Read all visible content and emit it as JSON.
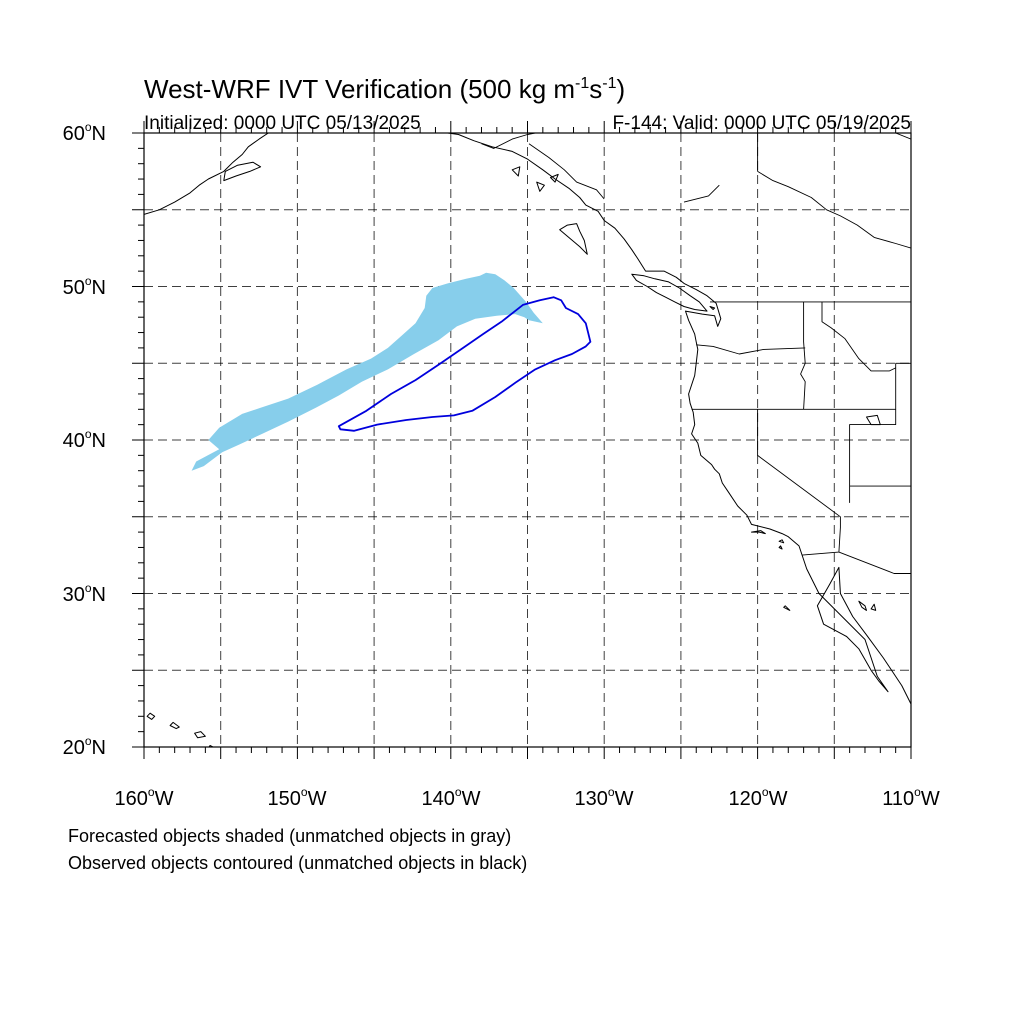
{
  "title": {
    "main": "West-WRF IVT Verification (500 kg m",
    "exp1": "-1",
    "mid": "s",
    "exp2": "-1",
    "end": ")"
  },
  "subtitle_left": "Initialized: 0000 UTC 05/13/2025",
  "subtitle_right": "F-144: Valid: 0000 UTC 05/19/2025",
  "map": {
    "lon_range": [
      -160,
      -110
    ],
    "lat_range": [
      20,
      60
    ],
    "lon_labels": [
      {
        "deg": "160",
        "hem": "W"
      },
      {
        "deg": "150",
        "hem": "W"
      },
      {
        "deg": "140",
        "hem": "W"
      },
      {
        "deg": "130",
        "hem": "W"
      },
      {
        "deg": "120",
        "hem": "W"
      },
      {
        "deg": "110",
        "hem": "W"
      }
    ],
    "lat_labels": [
      {
        "deg": "60",
        "hem": "N"
      },
      {
        "deg": "50",
        "hem": "N"
      },
      {
        "deg": "40",
        "hem": "N"
      },
      {
        "deg": "30",
        "hem": "N"
      },
      {
        "deg": "20",
        "hem": "N"
      }
    ],
    "colors": {
      "forecast_fill": "#87ceeb",
      "observed_contour": "#0000dd",
      "coastline": "#000000",
      "grid": "#000000"
    },
    "forecast_object": [
      [
        -156.9,
        38.0
      ],
      [
        -156.1,
        38.3
      ],
      [
        -154.9,
        39.2
      ],
      [
        -153.8,
        39.7
      ],
      [
        -152.3,
        40.4
      ],
      [
        -150.6,
        41.2
      ],
      [
        -148.8,
        42.1
      ],
      [
        -147.3,
        42.9
      ],
      [
        -145.8,
        43.8
      ],
      [
        -144.1,
        44.6
      ],
      [
        -142.4,
        45.6
      ],
      [
        -140.8,
        46.5
      ],
      [
        -139.6,
        47.4
      ],
      [
        -138.4,
        47.9
      ],
      [
        -137.0,
        48.1
      ],
      [
        -135.8,
        48.2
      ],
      [
        -135.2,
        48.0
      ],
      [
        -134.9,
        47.8
      ],
      [
        -134.0,
        47.6
      ],
      [
        -133.6,
        47.3
      ],
      [
        -134.0,
        47.6
      ],
      [
        -134.6,
        48.3
      ],
      [
        -135.1,
        49.0
      ],
      [
        -135.9,
        49.9
      ],
      [
        -136.5,
        50.4
      ],
      [
        -137.1,
        50.8
      ],
      [
        -137.7,
        50.9
      ],
      [
        -138.1,
        50.7
      ],
      [
        -139.0,
        50.5
      ],
      [
        -140.2,
        50.2
      ],
      [
        -141.2,
        49.9
      ],
      [
        -141.6,
        49.4
      ],
      [
        -141.7,
        48.6
      ],
      [
        -142.3,
        47.6
      ],
      [
        -143.2,
        46.8
      ],
      [
        -144.1,
        46.0
      ],
      [
        -145.2,
        45.3
      ],
      [
        -146.8,
        44.6
      ],
      [
        -148.7,
        43.6
      ],
      [
        -150.6,
        42.7
      ],
      [
        -152.4,
        42.1
      ],
      [
        -153.6,
        41.7
      ],
      [
        -155.1,
        40.8
      ],
      [
        -155.8,
        40.0
      ],
      [
        -155.1,
        39.4
      ],
      [
        -156.6,
        38.6
      ]
    ],
    "observed_object": [
      [
        -147.2,
        40.7
      ],
      [
        -146.3,
        40.6
      ],
      [
        -144.8,
        41.0
      ],
      [
        -142.9,
        41.3
      ],
      [
        -141.2,
        41.5
      ],
      [
        -139.8,
        41.6
      ],
      [
        -138.6,
        41.9
      ],
      [
        -137.1,
        42.8
      ],
      [
        -135.7,
        43.8
      ],
      [
        -134.5,
        44.6
      ],
      [
        -133.2,
        45.2
      ],
      [
        -132.1,
        45.6
      ],
      [
        -131.2,
        46.1
      ],
      [
        -130.9,
        46.4
      ],
      [
        -131.2,
        47.6
      ],
      [
        -131.7,
        48.2
      ],
      [
        -132.5,
        48.6
      ],
      [
        -132.8,
        49.1
      ],
      [
        -133.3,
        49.3
      ],
      [
        -134.2,
        49.1
      ],
      [
        -135.3,
        48.8
      ],
      [
        -136.7,
        47.7
      ],
      [
        -137.9,
        46.9
      ],
      [
        -139.2,
        46.0
      ],
      [
        -140.8,
        44.9
      ],
      [
        -142.3,
        43.9
      ],
      [
        -143.9,
        43.0
      ],
      [
        -145.5,
        41.9
      ],
      [
        -147.3,
        40.9
      ]
    ],
    "coastline_na": [
      [
        -110.0,
        22.8
      ],
      [
        -110.6,
        24.0
      ],
      [
        -111.8,
        25.8
      ],
      [
        -112.9,
        27.3
      ],
      [
        -113.8,
        28.5
      ],
      [
        -114.6,
        30.0
      ],
      [
        -114.7,
        31.7
      ],
      [
        -115.3,
        30.6
      ],
      [
        -116.1,
        29.2
      ],
      [
        -115.7,
        28.0
      ],
      [
        -114.2,
        27.2
      ],
      [
        -113.4,
        26.4
      ],
      [
        -112.6,
        25.0
      ],
      [
        -112.1,
        24.3
      ],
      [
        -111.5,
        23.6
      ],
      [
        -112.2,
        24.6
      ],
      [
        -113.0,
        27.0
      ],
      [
        -114.5,
        28.5
      ],
      [
        -116.0,
        30.0
      ],
      [
        -116.8,
        31.6
      ],
      [
        -117.1,
        32.5
      ],
      [
        -117.3,
        33.1
      ],
      [
        -118.0,
        33.7
      ],
      [
        -118.4,
        33.9
      ],
      [
        -119.2,
        34.2
      ],
      [
        -120.4,
        34.5
      ],
      [
        -120.7,
        35.1
      ],
      [
        -121.3,
        35.7
      ],
      [
        -121.9,
        36.6
      ],
      [
        -122.3,
        37.2
      ],
      [
        -122.5,
        37.8
      ],
      [
        -122.8,
        38.1
      ],
      [
        -123.0,
        38.4
      ],
      [
        -123.7,
        39.0
      ],
      [
        -123.9,
        39.8
      ],
      [
        -124.3,
        40.4
      ],
      [
        -124.1,
        41.0
      ],
      [
        -124.2,
        41.8
      ],
      [
        -124.4,
        42.4
      ],
      [
        -124.5,
        43.0
      ],
      [
        -124.1,
        44.2
      ],
      [
        -124.0,
        45.0
      ],
      [
        -123.9,
        45.9
      ],
      [
        -124.0,
        46.4
      ],
      [
        -124.1,
        46.9
      ],
      [
        -124.5,
        47.8
      ],
      [
        -124.7,
        48.4
      ],
      [
        -123.6,
        48.2
      ],
      [
        -122.8,
        48.1
      ],
      [
        -122.6,
        47.4
      ],
      [
        -122.4,
        47.9
      ],
      [
        -122.7,
        48.9
      ],
      [
        -123.3,
        49.4
      ],
      [
        -124.0,
        49.8
      ],
      [
        -124.8,
        50.2
      ],
      [
        -125.3,
        50.6
      ],
      [
        -126.1,
        51.0
      ],
      [
        -127.3,
        51.0
      ],
      [
        -127.8,
        51.8
      ],
      [
        -128.2,
        52.4
      ],
      [
        -128.7,
        53.1
      ],
      [
        -129.3,
        53.8
      ],
      [
        -130.0,
        54.3
      ],
      [
        -130.4,
        54.9
      ],
      [
        -131.2,
        55.3
      ],
      [
        -131.6,
        55.8
      ],
      [
        -132.3,
        56.4
      ],
      [
        -133.2,
        57.0
      ],
      [
        -134.0,
        57.6
      ],
      [
        -135.0,
        58.3
      ],
      [
        -136.0,
        58.8
      ],
      [
        -137.3,
        59.1
      ],
      [
        -138.5,
        59.5
      ],
      [
        -139.5,
        59.9
      ],
      [
        -140.2,
        60.0
      ]
    ],
    "vancouver_island": [
      [
        -123.3,
        48.4
      ],
      [
        -124.1,
        48.5
      ],
      [
        -124.8,
        48.7
      ],
      [
        -125.4,
        49.0
      ],
      [
        -126.0,
        49.3
      ],
      [
        -126.6,
        49.6
      ],
      [
        -127.2,
        50.0
      ],
      [
        -127.9,
        50.4
      ],
      [
        -128.2,
        50.8
      ],
      [
        -127.4,
        50.7
      ],
      [
        -126.7,
        50.5
      ],
      [
        -125.8,
        50.3
      ],
      [
        -125.1,
        49.9
      ],
      [
        -124.4,
        49.4
      ],
      [
        -123.8,
        49.0
      ],
      [
        -123.3,
        48.4
      ]
    ],
    "haida_gwaii": [
      [
        -131.1,
        52.1
      ],
      [
        -131.6,
        52.6
      ],
      [
        -132.2,
        53.1
      ],
      [
        -132.9,
        53.7
      ],
      [
        -132.4,
        54.0
      ],
      [
        -131.8,
        54.1
      ],
      [
        -131.6,
        53.6
      ],
      [
        -131.3,
        53.0
      ],
      [
        -131.1,
        52.1
      ]
    ],
    "alaska": [
      [
        -160.0,
        54.7
      ],
      [
        -159.0,
        55.0
      ],
      [
        -158.0,
        55.5
      ],
      [
        -157.0,
        56.1
      ],
      [
        -156.4,
        56.6
      ],
      [
        -155.8,
        57.0
      ],
      [
        -154.8,
        57.5
      ],
      [
        -154.2,
        58.1
      ],
      [
        -153.6,
        58.6
      ],
      [
        -153.2,
        59.1
      ],
      [
        -152.5,
        59.6
      ],
      [
        -151.9,
        60.0
      ]
    ],
    "kodiak": [
      [
        -154.8,
        56.9
      ],
      [
        -154.0,
        57.2
      ],
      [
        -153.1,
        57.5
      ],
      [
        -152.4,
        57.8
      ],
      [
        -152.9,
        58.1
      ],
      [
        -153.9,
        57.9
      ],
      [
        -154.7,
        57.5
      ],
      [
        -154.8,
        56.9
      ]
    ],
    "hawaii": [
      [
        [
          -154.8,
          19.3
        ],
        [
          -154.9,
          19.7
        ],
        [
          -155.7,
          20.1
        ],
        [
          -156.0,
          19.6
        ],
        [
          -155.8,
          19.0
        ],
        [
          -155.2,
          19.1
        ],
        [
          -154.8,
          19.3
        ]
      ],
      [
        [
          -156.0,
          20.7
        ],
        [
          -156.3,
          21.0
        ],
        [
          -156.7,
          20.9
        ],
        [
          -156.5,
          20.6
        ],
        [
          -156.0,
          20.7
        ]
      ],
      [
        [
          -157.7,
          21.3
        ],
        [
          -158.1,
          21.6
        ],
        [
          -158.3,
          21.4
        ],
        [
          -157.9,
          21.2
        ],
        [
          -157.7,
          21.3
        ]
      ],
      [
        [
          -159.3,
          22.0
        ],
        [
          -159.6,
          22.2
        ],
        [
          -159.8,
          22.0
        ],
        [
          -159.5,
          21.8
        ],
        [
          -159.3,
          22.0
        ]
      ]
    ],
    "borders": [
      [
        [
          -123.1,
          49.0
        ],
        [
          -110.0,
          49.0
        ]
      ],
      [
        [
          -124.3,
          42.0
        ],
        [
          -111.0,
          42.0
        ]
      ],
      [
        [
          -120.0,
          42.0
        ],
        [
          -120.0,
          39.0
        ],
        [
          -114.6,
          35.0
        ],
        [
          -114.6,
          34.3
        ],
        [
          -114.7,
          32.7
        ],
        [
          -117.1,
          32.5
        ]
      ],
      [
        [
          -114.7,
          32.7
        ],
        [
          -111.1,
          31.3
        ],
        [
          -110.0,
          31.3
        ]
      ],
      [
        [
          -117.0,
          49.0
        ],
        [
          -117.0,
          46.4
        ],
        [
          -116.9,
          45.0
        ],
        [
          -117.2,
          44.3
        ],
        [
          -116.9,
          43.8
        ],
        [
          -117.0,
          42.0
        ]
      ],
      [
        [
          -124.0,
          46.2
        ],
        [
          -122.9,
          46.1
        ],
        [
          -121.2,
          45.6
        ],
        [
          -119.6,
          45.9
        ],
        [
          -116.9,
          46.0
        ]
      ],
      [
        [
          -111.0,
          45.0
        ],
        [
          -111.0,
          41.0
        ],
        [
          -114.0,
          41.0
        ],
        [
          -114.0,
          37.0
        ],
        [
          -114.0,
          35.9
        ]
      ],
      [
        [
          -111.0,
          45.0
        ],
        [
          -110.0,
          45.0
        ]
      ],
      [
        [
          -114.0,
          37.0
        ],
        [
          -110.0,
          37.0
        ]
      ],
      [
        [
          -115.8,
          49.0
        ],
        [
          -115.8,
          47.7
        ],
        [
          -115.2,
          47.3
        ],
        [
          -114.3,
          46.6
        ],
        [
          -113.4,
          45.3
        ],
        [
          -112.6,
          44.5
        ],
        [
          -111.4,
          44.5
        ],
        [
          -111.0,
          44.7
        ]
      ],
      [
        [
          -120.0,
          57.5
        ],
        [
          -120.0,
          60.0
        ]
      ],
      [
        [
          -120.0,
          57.5
        ],
        [
          -119.0,
          56.9
        ],
        [
          -118.0,
          56.5
        ],
        [
          -116.5,
          55.8
        ],
        [
          -115.5,
          55.0
        ],
        [
          -114.6,
          54.6
        ],
        [
          -113.5,
          54.0
        ],
        [
          -112.4,
          53.2
        ],
        [
          -111.0,
          52.8
        ],
        [
          -110.0,
          52.5
        ]
      ],
      [
        [
          -124.8,
          55.5
        ],
        [
          -123.2,
          55.9
        ],
        [
          -122.5,
          56.6
        ]
      ],
      [
        [
          -138.0,
          59.3
        ],
        [
          -137.2,
          59.0
        ],
        [
          -136.0,
          59.6
        ],
        [
          -135.0,
          59.9
        ],
        [
          -134.5,
          60.0
        ]
      ],
      [
        [
          -130.0,
          55.7
        ],
        [
          -130.5,
          56.3
        ],
        [
          -131.8,
          56.8
        ],
        [
          -132.6,
          57.6
        ],
        [
          -133.6,
          58.4
        ],
        [
          -134.9,
          59.3
        ]
      ],
      [
        [
          -111.0,
          60.0
        ],
        [
          -110.0,
          59.6
        ]
      ]
    ],
    "islands_small": [
      [
        [
          -119.5,
          33.9
        ],
        [
          -119.9,
          34.0
        ],
        [
          -120.4,
          34.0
        ],
        [
          -119.8,
          34.1
        ],
        [
          -119.5,
          33.9
        ]
      ],
      [
        [
          -118.3,
          33.3
        ],
        [
          -118.6,
          33.4
        ],
        [
          -118.4,
          33.5
        ],
        [
          -118.3,
          33.3
        ]
      ],
      [
        [
          -118.4,
          32.9
        ],
        [
          -118.6,
          33.0
        ],
        [
          -118.5,
          33.1
        ],
        [
          -118.4,
          32.9
        ]
      ],
      [
        [
          -117.9,
          28.9
        ],
        [
          -118.3,
          29.1
        ],
        [
          -118.2,
          29.2
        ],
        [
          -117.9,
          28.9
        ]
      ],
      [
        [
          -112.9,
          28.9
        ],
        [
          -113.2,
          29.1
        ],
        [
          -113.4,
          29.5
        ],
        [
          -113.0,
          29.2
        ],
        [
          -112.9,
          28.9
        ]
      ],
      [
        [
          -112.3,
          28.9
        ],
        [
          -112.4,
          29.3
        ],
        [
          -112.6,
          29.0
        ],
        [
          -112.3,
          28.9
        ]
      ],
      [
        [
          -112.6,
          41.0
        ],
        [
          -112.9,
          41.5
        ],
        [
          -112.2,
          41.6
        ],
        [
          -112.0,
          41.0
        ],
        [
          -112.6,
          41.0
        ]
      ],
      [
        [
          -122.9,
          48.5
        ],
        [
          -123.1,
          48.7
        ],
        [
          -122.8,
          48.6
        ],
        [
          -122.9,
          48.5
        ]
      ],
      [
        [
          -133.2,
          56.8
        ],
        [
          -133.5,
          57.1
        ],
        [
          -133.0,
          57.3
        ],
        [
          -133.2,
          56.8
        ]
      ],
      [
        [
          -134.2,
          56.2
        ],
        [
          -134.4,
          56.8
        ],
        [
          -133.9,
          56.6
        ],
        [
          -134.2,
          56.2
        ]
      ],
      [
        [
          -135.6,
          57.2
        ],
        [
          -136.0,
          57.6
        ],
        [
          -135.5,
          57.8
        ],
        [
          -135.6,
          57.2
        ]
      ]
    ]
  }
}
